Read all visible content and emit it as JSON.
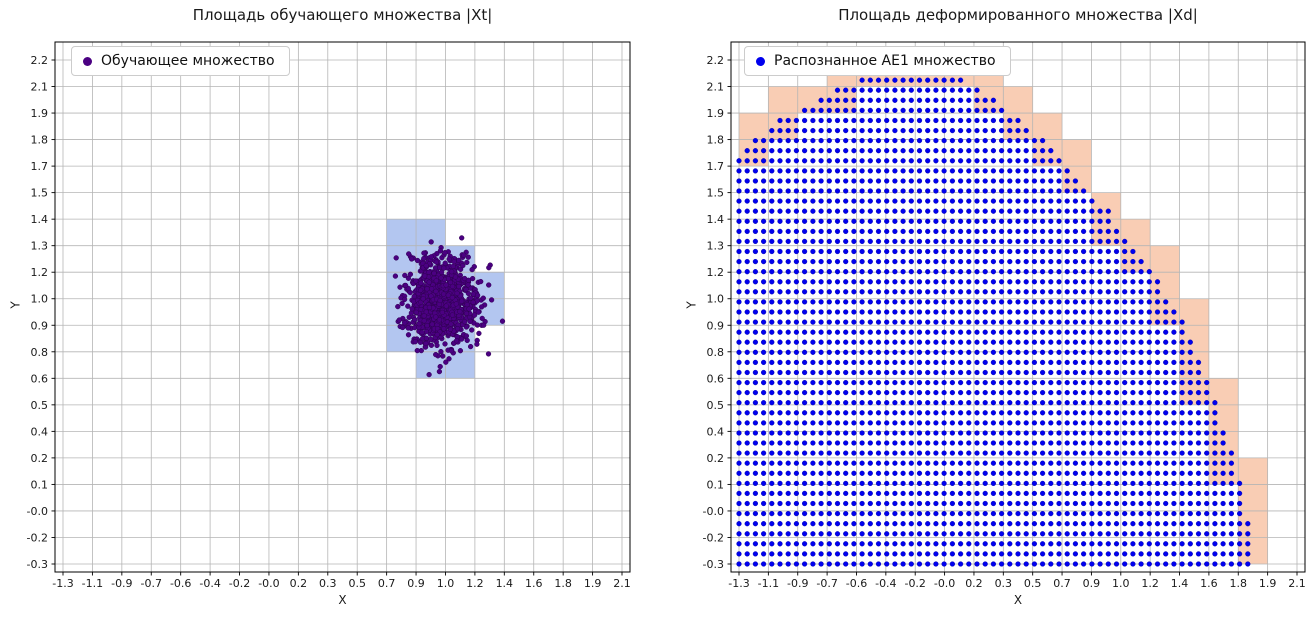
{
  "figure": {
    "background": "#ffffff",
    "grid_color": "#b5b5b5",
    "spine_color": "#000000"
  },
  "chart_data": [
    {
      "id": "training-set",
      "type": "scatter",
      "title": "Площадь обучающего множества |Xt|",
      "xlabel": "X",
      "ylabel": "Y",
      "x_range": [
        -1.3,
        2.1
      ],
      "y_range": [
        -0.3,
        2.2
      ],
      "grid": true,
      "grid_color": "#b5b5b5",
      "xtick_labels": [
        "-1.3",
        "-1.1",
        "-0.9",
        "-0.7",
        "-0.6",
        "-0.4",
        "-0.2",
        "-0.0",
        "0.2",
        "0.3",
        "0.5",
        "0.7",
        "0.9",
        "1.0",
        "1.2",
        "1.4",
        "1.6",
        "1.8",
        "1.9",
        "2.1"
      ],
      "ytick_labels_top_to_bottom": [
        "2.2",
        "2.1",
        "1.9",
        "1.8",
        "1.7",
        "1.5",
        "1.4",
        "1.3",
        "1.2",
        "1.0",
        "0.9",
        "0.8",
        "0.6",
        "0.5",
        "0.4",
        "0.2",
        "0.1",
        "-0.0",
        "-0.2",
        "-0.3"
      ],
      "legend": {
        "label": "Обучающее множество",
        "marker_color": "#4b0082"
      },
      "cells": {
        "color": "#b3c6f0",
        "rects": [
          [
            0.847,
            0.621,
            0.358,
            0.132
          ],
          [
            0.668,
            0.753,
            0.537,
            0.131
          ],
          [
            0.668,
            0.884,
            0.716,
            0.132
          ],
          [
            0.668,
            1.016,
            0.716,
            0.131
          ],
          [
            0.668,
            1.147,
            0.537,
            0.132
          ],
          [
            0.668,
            1.279,
            0.358,
            0.132
          ]
        ]
      },
      "cluster": {
        "center": [
          1.0,
          1.0
        ],
        "std": [
          0.11,
          0.11
        ],
        "count": 1000,
        "seed": 42,
        "color": "#4b0082",
        "edge": "#2e0050",
        "radius": 2.4
      }
    },
    {
      "id": "deformed-set",
      "type": "scatter",
      "title": "Площадь деформированного множества |Xd|",
      "xlabel": "X",
      "ylabel": "Y",
      "x_range": [
        -1.3,
        2.1
      ],
      "y_range": [
        -0.3,
        2.2
      ],
      "grid": true,
      "grid_color": "#b5b5b5",
      "xtick_labels": [
        "-1.3",
        "-1.1",
        "-0.9",
        "-0.7",
        "-0.6",
        "-0.4",
        "-0.2",
        "-0.0",
        "0.2",
        "0.3",
        "0.5",
        "0.7",
        "0.9",
        "1.0",
        "1.2",
        "1.4",
        "1.6",
        "1.8",
        "1.9",
        "2.1"
      ],
      "ytick_labels_top_to_bottom": [
        "2.2",
        "2.1",
        "1.9",
        "1.8",
        "1.7",
        "1.5",
        "1.4",
        "1.3",
        "1.2",
        "1.0",
        "0.9",
        "0.8",
        "0.6",
        "0.5",
        "0.4",
        "0.2",
        "0.1",
        "-0.0",
        "-0.2",
        "-0.3"
      ],
      "legend": {
        "label": "Распознанное АЕ1 множество",
        "marker_color": "#0000ee"
      },
      "cells": {
        "color": "#f9cdb4"
      },
      "boundary": [
        [
          -1.3,
          1.74
        ],
        [
          -1.05,
          1.9
        ],
        [
          -0.8,
          2.02
        ],
        [
          -0.55,
          2.11
        ],
        [
          -0.3,
          2.155
        ],
        [
          -0.05,
          2.16
        ],
        [
          0.2,
          2.04
        ],
        [
          0.45,
          1.88
        ],
        [
          0.7,
          1.68
        ],
        [
          0.95,
          1.45
        ],
        [
          1.2,
          1.18
        ],
        [
          1.4,
          0.9
        ],
        [
          1.55,
          0.63
        ],
        [
          1.68,
          0.33
        ],
        [
          1.78,
          0.02
        ],
        [
          1.84,
          -0.3
        ]
      ],
      "lattice": {
        "origin": [
          -1.3,
          -0.3
        ],
        "step": 0.05,
        "color": "#0000ee",
        "edge": "#0000a8",
        "radius": 2.4
      }
    }
  ]
}
